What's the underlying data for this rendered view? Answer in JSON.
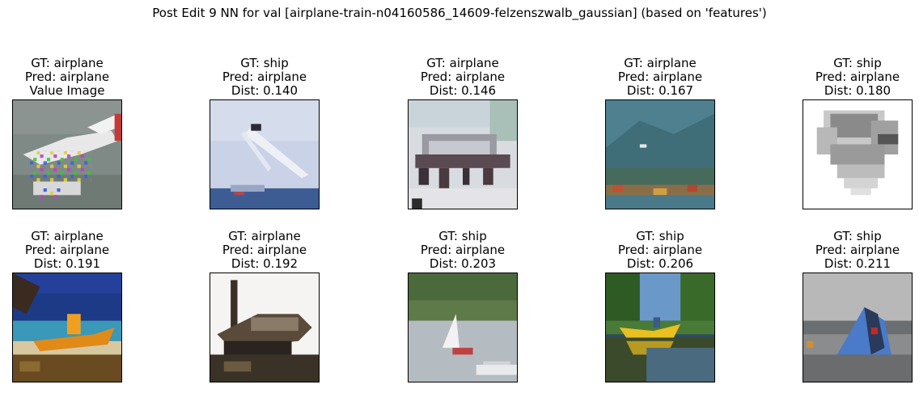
{
  "title": "Post Edit 9 NN for val [airplane-train-n04160586_14609-felzenszwalb_gaussian] (based on 'features')",
  "panels": [
    {
      "gt": "GT: airplane",
      "pred": "Pred: airplane",
      "extra": "Value Image"
    },
    {
      "gt": "GT: ship",
      "pred": "Pred: airplane",
      "extra": "Dist: 0.140"
    },
    {
      "gt": "GT: airplane",
      "pred": "Pred: airplane",
      "extra": "Dist: 0.146"
    },
    {
      "gt": "GT: airplane",
      "pred": "Pred: airplane",
      "extra": "Dist: 0.167"
    },
    {
      "gt": "GT: ship",
      "pred": "Pred: airplane",
      "extra": "Dist: 0.180"
    },
    {
      "gt": "GT: airplane",
      "pred": "Pred: airplane",
      "extra": "Dist: 0.191"
    },
    {
      "gt": "GT: airplane",
      "pred": "Pred: airplane",
      "extra": "Dist: 0.192"
    },
    {
      "gt": "GT: ship",
      "pred": "Pred: airplane",
      "extra": "Dist: 0.203"
    },
    {
      "gt": "GT: ship",
      "pred": "Pred: airplane",
      "extra": "Dist: 0.206"
    },
    {
      "gt": "GT: ship",
      "pred": "Pred: airplane",
      "extra": "Dist: 0.211"
    }
  ]
}
